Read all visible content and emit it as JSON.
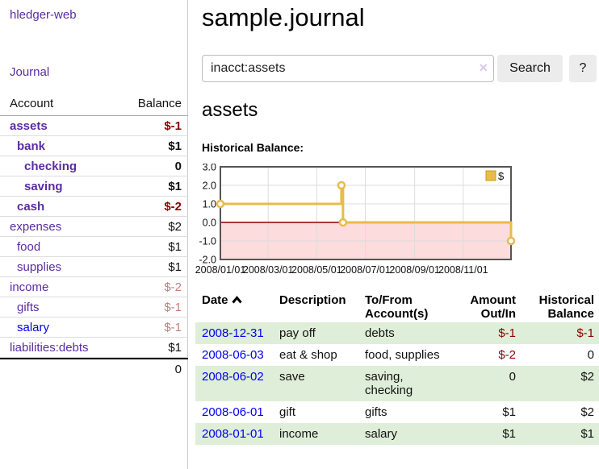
{
  "colors": {
    "link_purple": "#5a2ca0",
    "link_blue": "#0000ee",
    "negative_strong": "#8b0000",
    "negative_soft": "#bf7f7f",
    "row_green": "#dfeed8",
    "chart_line_gold": "#e8bb4a",
    "chart_negative_fill": "#fcdcdc",
    "zero_line_red": "#8b0000",
    "button_gray": "#ececec"
  },
  "sidebar": {
    "app_title": "hledger-web",
    "nav_journal": "Journal",
    "accounts": {
      "col_account": "Account",
      "col_balance": "Balance",
      "rows": [
        {
          "name": "assets",
          "indent": 0,
          "bold": true,
          "balance": "$-1",
          "balance_style": "neg-strong"
        },
        {
          "name": "bank",
          "indent": 1,
          "bold": true,
          "balance": "$1",
          "balance_style": "pos"
        },
        {
          "name": "checking",
          "indent": 2,
          "bold": true,
          "balance": "0",
          "balance_style": "pos"
        },
        {
          "name": "saving",
          "indent": 2,
          "bold": true,
          "balance": "$1",
          "balance_style": "pos"
        },
        {
          "name": "cash",
          "indent": 1,
          "bold": true,
          "balance": "$-2",
          "balance_style": "neg-strong"
        },
        {
          "name": "expenses",
          "indent": 0,
          "bold": false,
          "balance": "$2",
          "balance_style": "pos"
        },
        {
          "name": "food",
          "indent": 1,
          "bold": false,
          "balance": "$1",
          "balance_style": "pos"
        },
        {
          "name": "supplies",
          "indent": 1,
          "bold": false,
          "balance": "$1",
          "balance_style": "pos"
        },
        {
          "name": "income",
          "indent": 0,
          "bold": false,
          "balance": "$-2",
          "balance_style": "neg-soft"
        },
        {
          "name": "gifts",
          "indent": 1,
          "bold": false,
          "balance": "$-1",
          "balance_style": "neg-soft"
        },
        {
          "name": "salary",
          "indent": 1,
          "bold": false,
          "link_blue": true,
          "balance": "$-1",
          "balance_style": "neg-soft"
        },
        {
          "name": "liabilities:debts",
          "indent": 0,
          "bold": false,
          "balance": "$1",
          "balance_style": "pos"
        }
      ],
      "total": "0"
    }
  },
  "header": {
    "title": "sample.journal"
  },
  "search": {
    "query": "inacct:assets",
    "clear_icon": "×",
    "search_label": "Search",
    "help_label": "?"
  },
  "account_page": {
    "heading": "assets",
    "chart_label": "Historical Balance:"
  },
  "chart_data": {
    "type": "line",
    "step": true,
    "title": "Historical Balance",
    "legend": "$",
    "series": [
      {
        "name": "$",
        "points": [
          {
            "date": "2008-01-01",
            "value": 1
          },
          {
            "date": "2008-06-01",
            "value": 2
          },
          {
            "date": "2008-06-03",
            "value": 0
          },
          {
            "date": "2008-12-31",
            "value": -1
          }
        ]
      }
    ],
    "x_start": "2008-01-01",
    "x_end": "2008-12-31",
    "ylim": [
      -2,
      3
    ],
    "y_ticks": [
      "3.0",
      "2.0",
      "1.0",
      "0.0",
      "-1.0",
      "-2.0"
    ],
    "x_ticks": [
      "2008/01/01",
      "2008/03/01",
      "2008/05/01",
      "2008/07/01",
      "2008/09/01",
      "2008/11/01"
    ],
    "grid": true,
    "zero_line": true,
    "negative_region_shaded": true,
    "legend_position": "top-right"
  },
  "register": {
    "columns": {
      "date": "Date",
      "description": "Description",
      "tofrom": "To/From Account(s)",
      "amount": "Amount Out/In",
      "balance": "Historical Balance"
    },
    "sort_column": "date-ascending",
    "rows": [
      {
        "date": "2008-12-31",
        "description": "pay off",
        "tofrom": "debts",
        "amount": "$-1",
        "amount_neg": true,
        "balance": "$-1",
        "balance_neg": true,
        "shaded": true
      },
      {
        "date": "2008-06-03",
        "description": "eat & shop",
        "tofrom": "food, supplies",
        "amount": "$-2",
        "amount_neg": true,
        "balance": "0",
        "balance_neg": false,
        "shaded": false
      },
      {
        "date": "2008-06-02",
        "description": "save",
        "tofrom": "saving, checking",
        "amount": "0",
        "amount_neg": false,
        "balance": "$2",
        "balance_neg": false,
        "shaded": true
      },
      {
        "date": "2008-06-01",
        "description": "gift",
        "tofrom": "gifts",
        "amount": "$1",
        "amount_neg": false,
        "balance": "$2",
        "balance_neg": false,
        "shaded": false
      },
      {
        "date": "2008-01-01",
        "description": "income",
        "tofrom": "salary",
        "amount": "$1",
        "amount_neg": false,
        "balance": "$1",
        "balance_neg": false,
        "shaded": true
      }
    ]
  }
}
